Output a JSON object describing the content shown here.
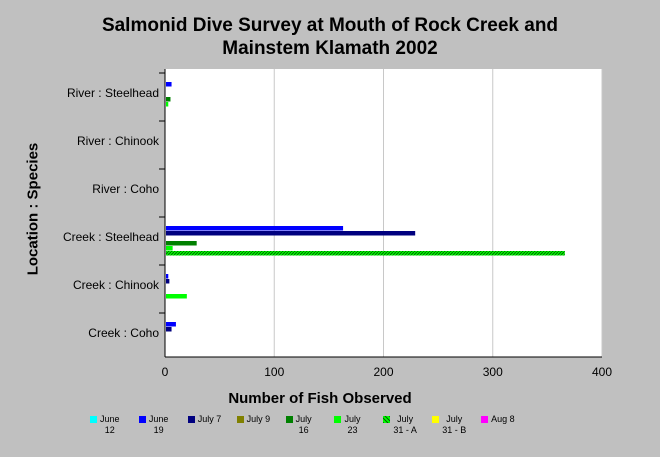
{
  "chart_data": {
    "type": "bar",
    "orientation": "horizontal",
    "title": "Salmonid Dive Survey at Mouth of Rock Creek and\nMainstem Klamath 2002",
    "xlabel": "Number of Fish Observed",
    "ylabel": "Location : Species",
    "xlim": [
      0,
      400
    ],
    "xticks": [
      0,
      100,
      200,
      300,
      400
    ],
    "grid": "vertical",
    "legend_position": "bottom",
    "categories": [
      "River : Steelhead",
      "River : Chinook",
      "River : Coho",
      "Creek : Steelhead",
      "Creek : Chinook",
      "Creek : Coho"
    ],
    "series": [
      {
        "name": "June 12",
        "color": "#00ffff",
        "values": [
          0,
          0,
          0,
          0,
          0,
          0
        ]
      },
      {
        "name": "June 19",
        "color": "#0000ff",
        "values": [
          6,
          0,
          0,
          163,
          3,
          10
        ]
      },
      {
        "name": "July 7",
        "color": "#00007f",
        "values": [
          0,
          0,
          0,
          229,
          4,
          6
        ]
      },
      {
        "name": "July 9",
        "color": "#808000",
        "values": [
          0,
          0,
          0,
          0,
          0,
          0
        ]
      },
      {
        "name": "July 16",
        "color": "#008000",
        "values": [
          5,
          0,
          0,
          29,
          0,
          0
        ]
      },
      {
        "name": "July 23",
        "color": "#00ff00",
        "values": [
          3,
          0,
          0,
          7,
          20,
          0
        ]
      },
      {
        "name": "July 31 - A",
        "color": "#00ff00",
        "pattern": "hatch",
        "values": [
          0,
          0,
          0,
          366,
          0,
          0
        ]
      },
      {
        "name": "July 31 - B",
        "color": "#ffff00",
        "values": [
          0,
          0,
          0,
          0,
          0,
          0
        ]
      },
      {
        "name": "Aug 8",
        "color": "#ff00ff",
        "values": [
          0,
          0,
          0,
          0,
          0,
          0
        ]
      }
    ]
  },
  "legend": [
    {
      "label": "June\n12",
      "color": "#00ffff"
    },
    {
      "label": "June\n19",
      "color": "#0000ff"
    },
    {
      "label": "July 7",
      "color": "#00007f"
    },
    {
      "label": "July 9",
      "color": "#808000"
    },
    {
      "label": "July\n16",
      "color": "#008000"
    },
    {
      "label": "July\n23",
      "color": "#00ff00"
    },
    {
      "label": "July\n31 - A",
      "color": "#00ff00",
      "pattern": "hatch"
    },
    {
      "label": "July\n31 - B",
      "color": "#ffff00"
    },
    {
      "label": "Aug 8",
      "color": "#ff00ff"
    }
  ]
}
